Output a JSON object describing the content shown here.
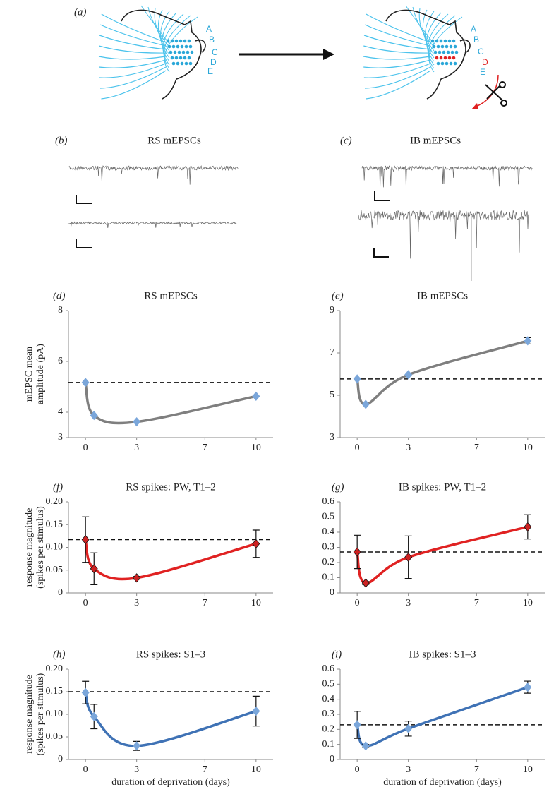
{
  "figure": {
    "panel_a": {
      "label": "(a)",
      "rows_before": [
        "A",
        "B",
        "C",
        "D",
        "E"
      ],
      "rows_after": [
        "A",
        "B",
        "C",
        "D",
        "E"
      ]
    },
    "panel_b": {
      "label": "(b)",
      "title": "RS mEPSCs"
    },
    "panel_c": {
      "label": "(c)",
      "title": "IB mEPSCs"
    }
  },
  "chart_data": [
    {
      "type": "line",
      "panel_label": "(d)",
      "title": "RS mEPSCs",
      "y_label": [
        "mEPSC mean",
        "amplitude (pA)"
      ],
      "x": [
        0,
        0.5,
        3,
        10
      ],
      "xlim": [
        -1,
        11
      ],
      "xticks": [
        0,
        3,
        7,
        10
      ],
      "ylim": [
        3,
        8
      ],
      "yticks": [
        3,
        4,
        6,
        8
      ],
      "reference_line": 5.17,
      "series": [
        {
          "values": [
            5.17,
            3.87,
            3.62,
            4.63
          ],
          "color": "#7f7f7f",
          "marker_color": "#7aa6da"
        }
      ]
    },
    {
      "type": "line",
      "panel_label": "(e)",
      "title": "IB mEPSCs",
      "x": [
        0,
        0.5,
        3,
        10
      ],
      "xlim": [
        -1,
        11
      ],
      "xticks": [
        0,
        3,
        7,
        10
      ],
      "ylim": [
        3,
        9
      ],
      "yticks": [
        3,
        5,
        7,
        9
      ],
      "reference_line": 5.77,
      "series": [
        {
          "values": [
            5.77,
            4.57,
            5.97,
            7.57
          ],
          "errors": [
            null,
            null,
            null,
            0.15
          ],
          "color": "#7f7f7f",
          "marker_color": "#7aa6da"
        }
      ]
    },
    {
      "type": "line",
      "panel_label": "(f)",
      "title": "RS spikes: PW, T1–2",
      "y_label": [
        "response magnitude",
        "(spikes per stimulus)"
      ],
      "x": [
        0,
        0.5,
        3,
        10
      ],
      "xlim": [
        -1,
        11
      ],
      "xticks": [
        0,
        3,
        7,
        10
      ],
      "ylim": [
        0,
        0.2
      ],
      "yticks": [
        0,
        0.05,
        {
          "value": 0.1,
          "label": "0.10"
        },
        0.15,
        {
          "value": 0.2,
          "label": "0.20"
        }
      ],
      "reference_line": 0.117,
      "series": [
        {
          "values": [
            0.117,
            0.053,
            0.033,
            0.108
          ],
          "errors": [
            0.05,
            0.035,
            0.003,
            0.03
          ],
          "color": "#e02222",
          "marker_color": "#cc2222"
        }
      ]
    },
    {
      "type": "line",
      "panel_label": "(g)",
      "title": "IB spikes: PW, T1–2",
      "x": [
        0,
        0.5,
        3,
        10
      ],
      "xlim": [
        -1,
        11
      ],
      "xticks": [
        0,
        3,
        7,
        10
      ],
      "ylim": [
        0,
        0.6
      ],
      "yticks": [
        0,
        0.1,
        0.2,
        0.3,
        0.4,
        0.5,
        0.6
      ],
      "reference_line": 0.27,
      "series": [
        {
          "values": [
            0.27,
            0.065,
            0.235,
            0.435
          ],
          "errors": [
            0.11,
            0.01,
            0.14,
            0.08
          ],
          "color": "#e02222",
          "marker_color": "#cc2222"
        }
      ]
    },
    {
      "type": "line",
      "panel_label": "(h)",
      "title": "RS spikes: S1–3",
      "y_label": [
        "response magnitude",
        "(spikes per stimulus)"
      ],
      "x_label": "duration of deprivation (days)",
      "x": [
        0,
        0.5,
        3,
        10
      ],
      "xlim": [
        -1,
        11
      ],
      "xticks": [
        0,
        3,
        7,
        10
      ],
      "ylim": [
        0,
        0.2
      ],
      "yticks": [
        0,
        0.05,
        {
          "value": 0.1,
          "label": "0.10"
        },
        0.15,
        {
          "value": 0.2,
          "label": "0.20"
        }
      ],
      "reference_line": 0.15,
      "series": [
        {
          "values": [
            0.148,
            0.095,
            0.03,
            0.107
          ],
          "errors": [
            0.025,
            0.027,
            0.01,
            0.033
          ],
          "color": "#3f72b5",
          "marker_color": "#7aa6da"
        }
      ]
    },
    {
      "type": "line",
      "panel_label": "(i)",
      "title": "IB spikes: S1–3",
      "x_label": "duration of deprivation (days)",
      "x": [
        0,
        0.5,
        3,
        10
      ],
      "xlim": [
        -1,
        11
      ],
      "xticks": [
        0,
        3,
        7,
        10
      ],
      "ylim": [
        0,
        0.6
      ],
      "yticks": [
        0,
        0.1,
        0.2,
        0.3,
        0.4,
        0.5,
        0.6
      ],
      "reference_line": 0.23,
      "series": [
        {
          "values": [
            0.23,
            0.09,
            0.205,
            0.48
          ],
          "errors": [
            0.09,
            0.01,
            0.05,
            0.04
          ],
          "color": "#3f72b5",
          "marker_color": "#7aa6da"
        }
      ]
    }
  ]
}
